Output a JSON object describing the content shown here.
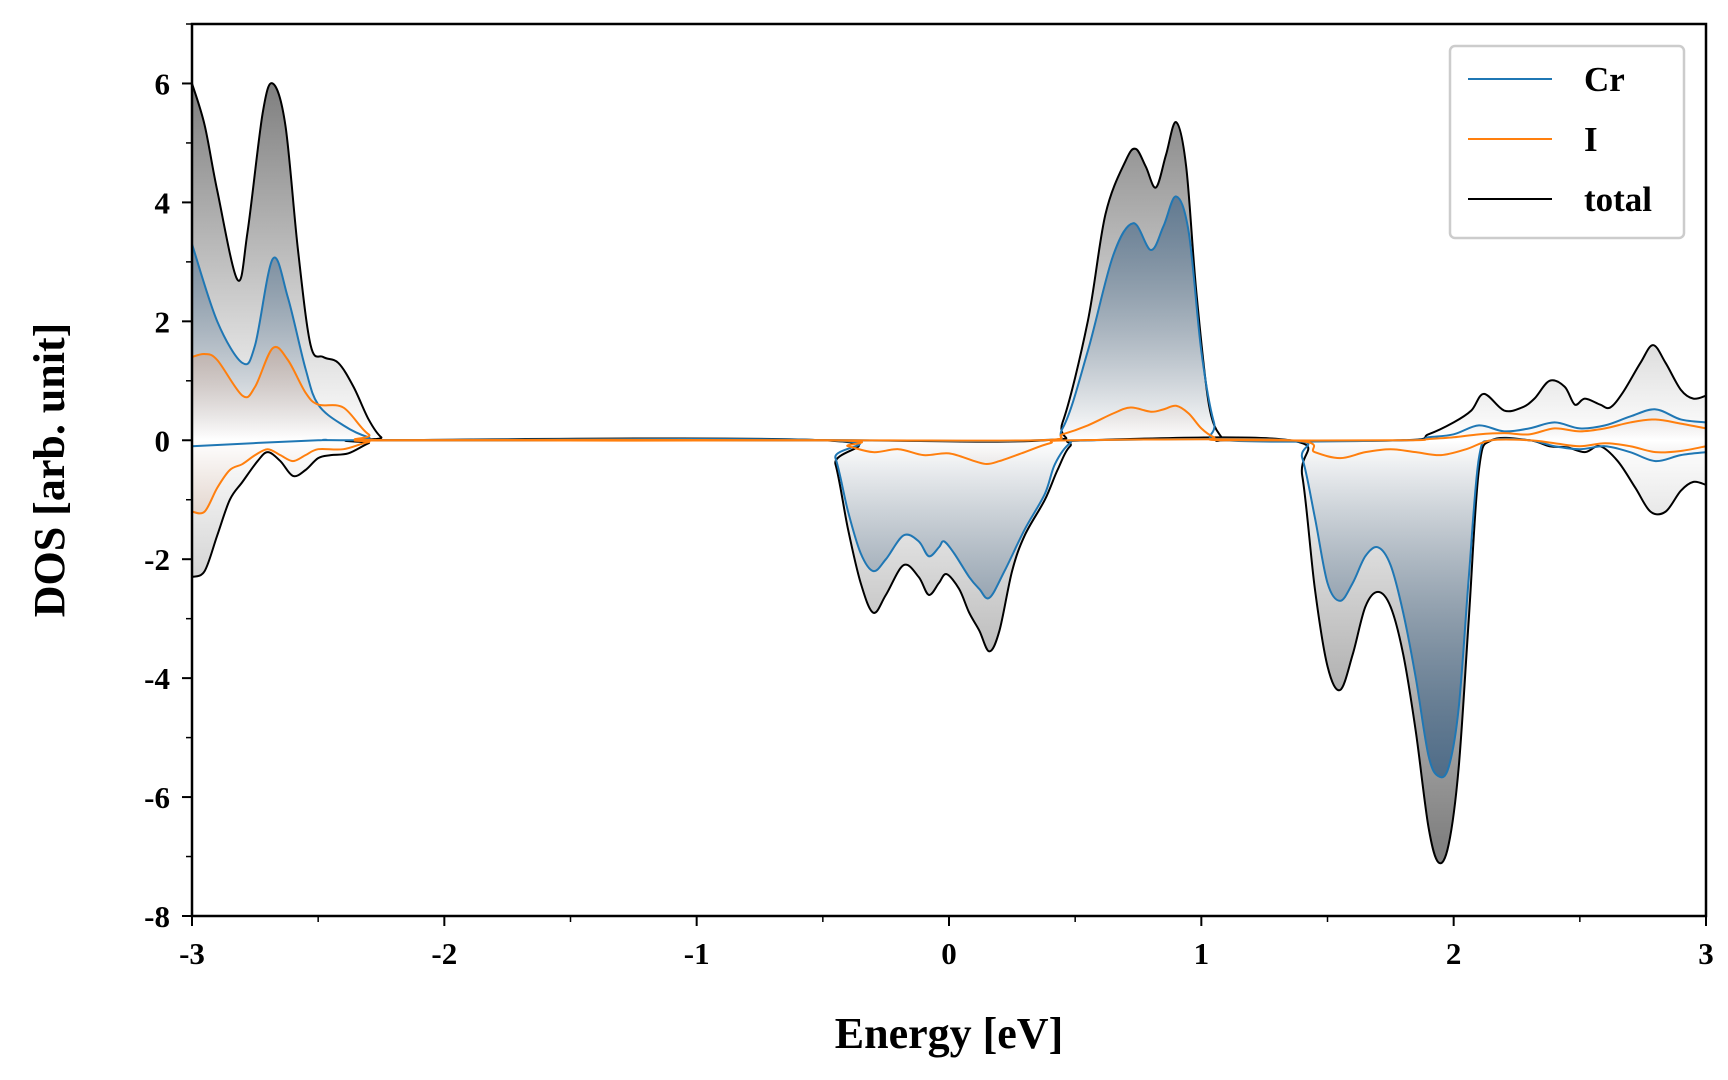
{
  "chart_data": {
    "type": "line",
    "title": "",
    "xlabel": "Energy [eV]",
    "ylabel": "DOS [arb. unit]",
    "xlim": [
      -3,
      3
    ],
    "ylim": [
      -8,
      7
    ],
    "x_ticks": [
      -3,
      -2,
      -1,
      0,
      1,
      2,
      3
    ],
    "x_tick_labels": [
      "-3",
      "-2",
      "-1",
      "0",
      "1",
      "2",
      "3"
    ],
    "y_ticks": [
      -8,
      -6,
      -4,
      -2,
      0,
      2,
      4,
      6
    ],
    "y_tick_labels": [
      "-8",
      "-6",
      "-4",
      "-2",
      "0",
      "2",
      "4",
      "6"
    ],
    "grid": false,
    "legend_position": "top-right",
    "series": [
      {
        "name": "Cr",
        "color": "#1f77b4",
        "fill_color": "#3d6285",
        "spin_up": [
          [
            -3,
            3.3
          ],
          [
            -2.9,
            2.0
          ],
          [
            -2.8,
            1.3
          ],
          [
            -2.75,
            1.6
          ],
          [
            -2.68,
            3.05
          ],
          [
            -2.62,
            2.4
          ],
          [
            -2.55,
            1.2
          ],
          [
            -2.5,
            0.6
          ],
          [
            -2.4,
            0.25
          ],
          [
            -2.3,
            0.05
          ],
          [
            -2.2,
            0
          ],
          [
            -0.5,
            0
          ],
          [
            0.35,
            0
          ],
          [
            0.45,
            0.2
          ],
          [
            0.55,
            1.5
          ],
          [
            0.65,
            3.1
          ],
          [
            0.73,
            3.65
          ],
          [
            0.8,
            3.2
          ],
          [
            0.85,
            3.6
          ],
          [
            0.9,
            4.1
          ],
          [
            0.95,
            3.5
          ],
          [
            1.0,
            1.5
          ],
          [
            1.05,
            0.3
          ],
          [
            1.1,
            0
          ],
          [
            1.8,
            0
          ],
          [
            1.9,
            0.05
          ],
          [
            2.0,
            0.1
          ],
          [
            2.1,
            0.25
          ],
          [
            2.2,
            0.15
          ],
          [
            2.3,
            0.2
          ],
          [
            2.4,
            0.3
          ],
          [
            2.5,
            0.2
          ],
          [
            2.6,
            0.25
          ],
          [
            2.7,
            0.4
          ],
          [
            2.8,
            0.52
          ],
          [
            2.9,
            0.35
          ],
          [
            3.0,
            0.3
          ]
        ],
        "spin_down": [
          [
            -3,
            -0.1
          ],
          [
            -2.5,
            0
          ],
          [
            -2.3,
            0
          ],
          [
            -0.5,
            0
          ],
          [
            -0.45,
            -0.3
          ],
          [
            -0.4,
            -1.2
          ],
          [
            -0.35,
            -1.9
          ],
          [
            -0.3,
            -2.2
          ],
          [
            -0.25,
            -2.0
          ],
          [
            -0.18,
            -1.6
          ],
          [
            -0.12,
            -1.7
          ],
          [
            -0.08,
            -1.95
          ],
          [
            -0.04,
            -1.8
          ],
          [
            -0.02,
            -1.7
          ],
          [
            0.02,
            -1.9
          ],
          [
            0.08,
            -2.3
          ],
          [
            0.12,
            -2.5
          ],
          [
            0.16,
            -2.65
          ],
          [
            0.22,
            -2.2
          ],
          [
            0.3,
            -1.5
          ],
          [
            0.38,
            -0.9
          ],
          [
            0.42,
            -0.4
          ],
          [
            0.48,
            -0.05
          ],
          [
            0.55,
            0
          ],
          [
            1.35,
            0
          ],
          [
            1.4,
            -0.3
          ],
          [
            1.45,
            -1.3
          ],
          [
            1.5,
            -2.4
          ],
          [
            1.55,
            -2.7
          ],
          [
            1.6,
            -2.4
          ],
          [
            1.65,
            -1.95
          ],
          [
            1.7,
            -1.8
          ],
          [
            1.75,
            -2.1
          ],
          [
            1.8,
            -2.9
          ],
          [
            1.85,
            -4.0
          ],
          [
            1.9,
            -5.3
          ],
          [
            1.94,
            -5.65
          ],
          [
            1.98,
            -5.5
          ],
          [
            2.02,
            -4.5
          ],
          [
            2.06,
            -2.3
          ],
          [
            2.1,
            -0.3
          ],
          [
            2.15,
            0
          ],
          [
            2.3,
            0
          ],
          [
            2.4,
            -0.1
          ],
          [
            2.5,
            -0.15
          ],
          [
            2.6,
            -0.1
          ],
          [
            2.7,
            -0.2
          ],
          [
            2.8,
            -0.35
          ],
          [
            2.9,
            -0.25
          ],
          [
            3.0,
            -0.2
          ]
        ]
      },
      {
        "name": "I",
        "color": "#ff7f0e",
        "fill_color": "#d4865a",
        "spin_up": [
          [
            -3,
            1.4
          ],
          [
            -2.95,
            1.45
          ],
          [
            -2.9,
            1.35
          ],
          [
            -2.8,
            0.75
          ],
          [
            -2.75,
            0.9
          ],
          [
            -2.68,
            1.55
          ],
          [
            -2.62,
            1.35
          ],
          [
            -2.55,
            0.8
          ],
          [
            -2.5,
            0.6
          ],
          [
            -2.4,
            0.55
          ],
          [
            -2.3,
            0.1
          ],
          [
            -2.2,
            0
          ],
          [
            -0.5,
            0
          ],
          [
            0.35,
            0
          ],
          [
            0.45,
            0.1
          ],
          [
            0.55,
            0.25
          ],
          [
            0.65,
            0.45
          ],
          [
            0.72,
            0.55
          ],
          [
            0.8,
            0.48
          ],
          [
            0.85,
            0.52
          ],
          [
            0.9,
            0.58
          ],
          [
            0.95,
            0.45
          ],
          [
            1.0,
            0.2
          ],
          [
            1.05,
            0.05
          ],
          [
            1.1,
            0
          ],
          [
            1.8,
            0
          ],
          [
            1.9,
            0.02
          ],
          [
            2.0,
            0.05
          ],
          [
            2.1,
            0.1
          ],
          [
            2.2,
            0.12
          ],
          [
            2.3,
            0.1
          ],
          [
            2.4,
            0.2
          ],
          [
            2.5,
            0.15
          ],
          [
            2.6,
            0.2
          ],
          [
            2.7,
            0.3
          ],
          [
            2.8,
            0.35
          ],
          [
            2.9,
            0.28
          ],
          [
            3.0,
            0.2
          ]
        ],
        "spin_down": [
          [
            -3,
            -1.2
          ],
          [
            -2.95,
            -1.2
          ],
          [
            -2.9,
            -0.8
          ],
          [
            -2.85,
            -0.5
          ],
          [
            -2.8,
            -0.4
          ],
          [
            -2.75,
            -0.25
          ],
          [
            -2.7,
            -0.15
          ],
          [
            -2.65,
            -0.25
          ],
          [
            -2.6,
            -0.35
          ],
          [
            -2.55,
            -0.25
          ],
          [
            -2.5,
            -0.15
          ],
          [
            -2.4,
            -0.15
          ],
          [
            -2.3,
            -0.03
          ],
          [
            -2.2,
            0
          ],
          [
            -0.5,
            0
          ],
          [
            -0.4,
            -0.1
          ],
          [
            -0.3,
            -0.2
          ],
          [
            -0.2,
            -0.15
          ],
          [
            -0.1,
            -0.25
          ],
          [
            0,
            -0.22
          ],
          [
            0.1,
            -0.35
          ],
          [
            0.15,
            -0.4
          ],
          [
            0.2,
            -0.35
          ],
          [
            0.3,
            -0.2
          ],
          [
            0.4,
            -0.05
          ],
          [
            0.5,
            0
          ],
          [
            1.35,
            0
          ],
          [
            1.45,
            -0.2
          ],
          [
            1.55,
            -0.3
          ],
          [
            1.65,
            -0.2
          ],
          [
            1.75,
            -0.15
          ],
          [
            1.85,
            -0.2
          ],
          [
            1.95,
            -0.25
          ],
          [
            2.05,
            -0.15
          ],
          [
            2.15,
            0
          ],
          [
            2.3,
            0
          ],
          [
            2.4,
            -0.05
          ],
          [
            2.5,
            -0.1
          ],
          [
            2.6,
            -0.05
          ],
          [
            2.7,
            -0.1
          ],
          [
            2.8,
            -0.2
          ],
          [
            2.9,
            -0.18
          ],
          [
            3.0,
            -0.1
          ]
        ]
      },
      {
        "name": "total",
        "color": "#000000",
        "fill_color": "#808080",
        "spin_up": [
          [
            -3,
            6.0
          ],
          [
            -2.95,
            5.3
          ],
          [
            -2.9,
            4.2
          ],
          [
            -2.82,
            2.7
          ],
          [
            -2.78,
            3.5
          ],
          [
            -2.72,
            5.5
          ],
          [
            -2.68,
            6.0
          ],
          [
            -2.63,
            5.3
          ],
          [
            -2.58,
            3.2
          ],
          [
            -2.53,
            1.6
          ],
          [
            -2.48,
            1.4
          ],
          [
            -2.42,
            1.3
          ],
          [
            -2.36,
            0.9
          ],
          [
            -2.3,
            0.35
          ],
          [
            -2.25,
            0.05
          ],
          [
            -2.2,
            0
          ],
          [
            -0.5,
            0
          ],
          [
            0.38,
            0
          ],
          [
            0.45,
            0.3
          ],
          [
            0.55,
            2.0
          ],
          [
            0.62,
            3.8
          ],
          [
            0.7,
            4.7
          ],
          [
            0.74,
            4.9
          ],
          [
            0.78,
            4.6
          ],
          [
            0.82,
            4.25
          ],
          [
            0.86,
            4.8
          ],
          [
            0.9,
            5.35
          ],
          [
            0.94,
            4.6
          ],
          [
            0.98,
            2.5
          ],
          [
            1.03,
            0.6
          ],
          [
            1.08,
            0.05
          ],
          [
            1.12,
            0
          ],
          [
            1.8,
            0
          ],
          [
            1.9,
            0.1
          ],
          [
            2.0,
            0.3
          ],
          [
            2.07,
            0.5
          ],
          [
            2.12,
            0.78
          ],
          [
            2.2,
            0.5
          ],
          [
            2.27,
            0.55
          ],
          [
            2.32,
            0.7
          ],
          [
            2.38,
            1.0
          ],
          [
            2.44,
            0.9
          ],
          [
            2.48,
            0.6
          ],
          [
            2.52,
            0.7
          ],
          [
            2.58,
            0.6
          ],
          [
            2.62,
            0.55
          ],
          [
            2.67,
            0.8
          ],
          [
            2.74,
            1.3
          ],
          [
            2.79,
            1.6
          ],
          [
            2.84,
            1.3
          ],
          [
            2.9,
            0.85
          ],
          [
            2.95,
            0.7
          ],
          [
            3.0,
            0.75
          ]
        ],
        "spin_down": [
          [
            -3,
            -2.3
          ],
          [
            -2.95,
            -2.2
          ],
          [
            -2.9,
            -1.6
          ],
          [
            -2.85,
            -1.0
          ],
          [
            -2.8,
            -0.7
          ],
          [
            -2.74,
            -0.35
          ],
          [
            -2.7,
            -0.2
          ],
          [
            -2.65,
            -0.35
          ],
          [
            -2.6,
            -0.6
          ],
          [
            -2.55,
            -0.5
          ],
          [
            -2.5,
            -0.3
          ],
          [
            -2.45,
            -0.25
          ],
          [
            -2.38,
            -0.22
          ],
          [
            -2.3,
            -0.05
          ],
          [
            -2.25,
            0
          ],
          [
            -0.5,
            0
          ],
          [
            -0.45,
            -0.4
          ],
          [
            -0.4,
            -1.5
          ],
          [
            -0.35,
            -2.4
          ],
          [
            -0.3,
            -2.9
          ],
          [
            -0.25,
            -2.6
          ],
          [
            -0.18,
            -2.1
          ],
          [
            -0.12,
            -2.3
          ],
          [
            -0.08,
            -2.6
          ],
          [
            -0.04,
            -2.4
          ],
          [
            -0.01,
            -2.25
          ],
          [
            0.04,
            -2.5
          ],
          [
            0.08,
            -2.9
          ],
          [
            0.12,
            -3.2
          ],
          [
            0.16,
            -3.55
          ],
          [
            0.2,
            -3.2
          ],
          [
            0.25,
            -2.2
          ],
          [
            0.3,
            -1.6
          ],
          [
            0.38,
            -1.0
          ],
          [
            0.43,
            -0.5
          ],
          [
            0.48,
            -0.1
          ],
          [
            0.55,
            0
          ],
          [
            1.35,
            0
          ],
          [
            1.4,
            -0.6
          ],
          [
            1.45,
            -2.5
          ],
          [
            1.5,
            -3.8
          ],
          [
            1.55,
            -4.2
          ],
          [
            1.6,
            -3.6
          ],
          [
            1.65,
            -2.8
          ],
          [
            1.7,
            -2.55
          ],
          [
            1.75,
            -2.8
          ],
          [
            1.8,
            -3.6
          ],
          [
            1.85,
            -4.9
          ],
          [
            1.9,
            -6.5
          ],
          [
            1.94,
            -7.1
          ],
          [
            1.98,
            -6.8
          ],
          [
            2.02,
            -5.5
          ],
          [
            2.06,
            -3.0
          ],
          [
            2.1,
            -0.5
          ],
          [
            2.15,
            0
          ],
          [
            2.3,
            0
          ],
          [
            2.38,
            -0.1
          ],
          [
            2.45,
            -0.12
          ],
          [
            2.52,
            -0.2
          ],
          [
            2.58,
            -0.1
          ],
          [
            2.65,
            -0.35
          ],
          [
            2.72,
            -0.8
          ],
          [
            2.78,
            -1.2
          ],
          [
            2.84,
            -1.2
          ],
          [
            2.9,
            -0.85
          ],
          [
            2.95,
            -0.7
          ],
          [
            3.0,
            -0.75
          ]
        ]
      }
    ]
  }
}
